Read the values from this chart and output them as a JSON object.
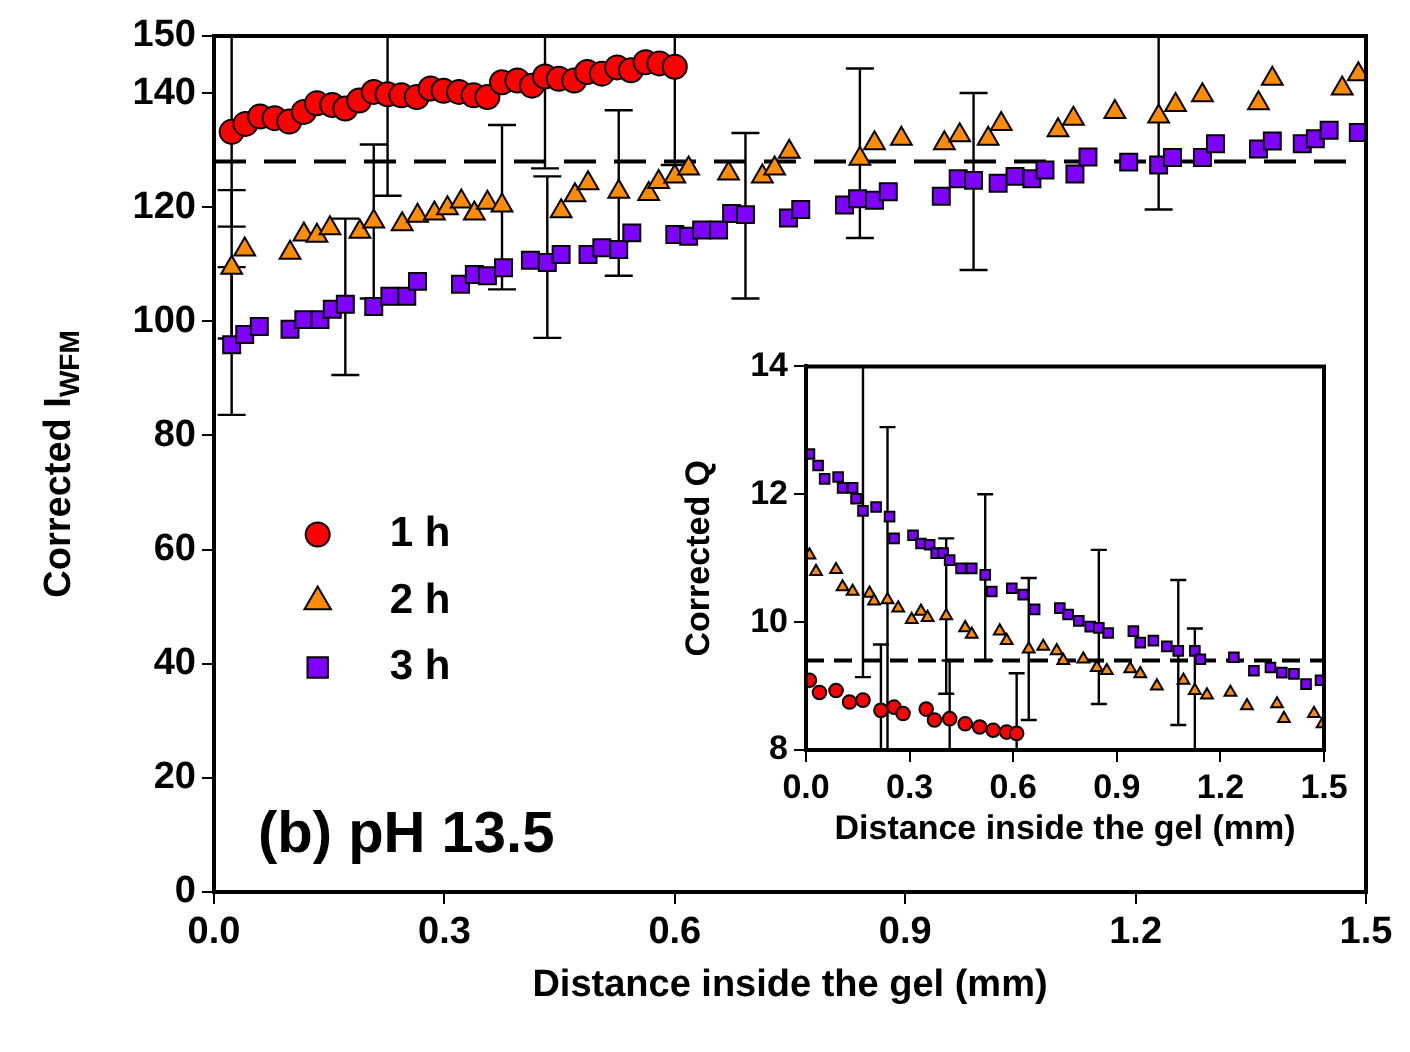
{
  "chart_data": [
    {
      "type": "scatter",
      "ylabel": "Corrected I$_{WFM}$",
      "xlabel": "Distance inside the gel (mm)",
      "annotations": [
        "(b) pH 13.5"
      ],
      "xlim": [
        0,
        1.5
      ],
      "xticks": [
        {
          "value": 0,
          "label": "0.0"
        },
        0.3,
        0.6,
        0.9,
        1.2,
        1.5
      ],
      "ylim": [
        0,
        150
      ],
      "yticks": [
        0,
        20,
        40,
        60,
        80,
        100,
        120,
        140,
        150
      ],
      "legend": "left",
      "ref_lines": [
        {
          "axis": "y",
          "value": 128,
          "label": null,
          "line_style": "dashed"
        }
      ],
      "series": [
        {
          "name": "1 h",
          "color": "#ff0000",
          "marker": "circle",
          "x": [
            0.023,
            0.041,
            0.06,
            0.079,
            0.098,
            0.117,
            0.134,
            0.154,
            0.171,
            0.189,
            0.208,
            0.226,
            0.244,
            0.264,
            0.282,
            0.299,
            0.319,
            0.338,
            0.356,
            0.375,
            0.395,
            0.414,
            0.431,
            0.449,
            0.469,
            0.486,
            0.505,
            0.525,
            0.543,
            0.562,
            0.58,
            0.6
          ],
          "values": [
            133.2,
            134.6,
            135.9,
            135.6,
            135,
            136.7,
            138.2,
            137.9,
            137.3,
            138.7,
            140.2,
            139.8,
            139.6,
            139.3,
            140.8,
            140.4,
            140.2,
            139.6,
            139.3,
            141.9,
            142.2,
            141.3,
            142.9,
            142.5,
            142.2,
            143.7,
            143.4,
            144.5,
            144,
            145.4,
            145.2,
            144.6
          ],
          "errors": [
            [
              116.6,
              150
            ],
            null,
            null,
            null,
            null,
            null,
            null,
            null,
            null,
            null,
            null,
            [
              122,
              150
            ],
            null,
            null,
            null,
            null,
            null,
            null,
            null,
            null,
            null,
            null,
            [
              126.8,
              150
            ],
            null,
            null,
            null,
            null,
            null,
            null,
            null,
            null,
            [
              127.4,
              150
            ]
          ]
        },
        {
          "name": "2 h",
          "color": "#ff8c00",
          "marker": "triangle",
          "x": [
            0.023,
            0.04,
            0.099,
            0.117,
            0.134,
            0.151,
            0.19,
            0.208,
            0.245,
            0.265,
            0.287,
            0.304,
            0.322,
            0.339,
            0.356,
            0.375,
            0.452,
            0.47,
            0.487,
            0.527,
            0.566,
            0.579,
            0.6,
            0.618,
            0.67,
            0.714,
            0.73,
            0.749,
            0.841,
            0.86,
            0.895,
            0.951,
            0.971,
            1.008,
            1.025,
            1.099,
            1.119,
            1.173,
            1.23,
            1.252,
            1.287,
            1.36,
            1.378,
            1.469,
            1.49
          ],
          "values": [
            109.4,
            112.6,
            112,
            115.2,
            115,
            116.3,
            115.7,
            117.5,
            117,
            118.5,
            118.9,
            119.8,
            121,
            118.9,
            120.8,
            120.3,
            119.3,
            122.1,
            124.2,
            122.7,
            122.3,
            124.4,
            125.4,
            126.8,
            125.9,
            125.4,
            126.8,
            129.7,
            128.5,
            131.2,
            132,
            131.2,
            132.6,
            132,
            134.6,
            133.5,
            135.5,
            136.7,
            135.9,
            137.9,
            139.6,
            138.2,
            142.5,
            140.8,
            143.3
          ],
          "errors": [
            [
              97,
              123
            ],
            null,
            null,
            null,
            null,
            null,
            null,
            [
              104,
              131
            ],
            null,
            null,
            null,
            null,
            null,
            null,
            null,
            [
              105.6,
              134.4
            ],
            null,
            null,
            null,
            [
              108,
              137
            ],
            null,
            null,
            null,
            null,
            null,
            null,
            null,
            null,
            [
              114.6,
              144.3
            ],
            null,
            null,
            null,
            null,
            null,
            null,
            null,
            null,
            null,
            [
              119.6,
              150
            ],
            null,
            null,
            null,
            null,
            null,
            null
          ]
        },
        {
          "name": "3 h",
          "color": "#7f00ff",
          "marker": "square",
          "x": [
            0.023,
            0.04,
            0.059,
            0.099,
            0.117,
            0.138,
            0.154,
            0.171,
            0.208,
            0.229,
            0.251,
            0.265,
            0.321,
            0.339,
            0.356,
            0.377,
            0.412,
            0.434,
            0.452,
            0.487,
            0.505,
            0.527,
            0.544,
            0.6,
            0.618,
            0.635,
            0.657,
            0.674,
            0.692,
            0.748,
            0.764,
            0.821,
            0.838,
            0.86,
            0.878,
            0.947,
            0.969,
            0.989,
            1.021,
            1.043,
            1.065,
            1.082,
            1.121,
            1.138,
            1.191,
            1.23,
            1.248,
            1.287,
            1.304,
            1.36,
            1.378,
            1.417,
            1.434,
            1.452,
            1.49
          ],
          "values": [
            95.9,
            97.7,
            99.1,
            98.6,
            100.3,
            100.3,
            102.1,
            103,
            102.6,
            104.4,
            104.4,
            107,
            106.5,
            108.2,
            108,
            109.4,
            110.7,
            110.3,
            111.7,
            111.7,
            112.9,
            112.6,
            115.5,
            115.2,
            114.9,
            116,
            116,
            118.9,
            118.7,
            118.1,
            119.6,
            120.4,
            121.5,
            121.2,
            122.7,
            121.9,
            125,
            124.7,
            124.2,
            125.4,
            125,
            126.5,
            125.8,
            128.8,
            127.9,
            127.4,
            128.7,
            128.7,
            131.1,
            130.2,
            131.6,
            131.1,
            132,
            133.5,
            133.1
          ],
          "errors": [
            [
              83.6,
              109.5
            ],
            null,
            null,
            null,
            null,
            null,
            null,
            [
              90.6,
              118
            ],
            null,
            null,
            null,
            null,
            null,
            null,
            null,
            null,
            null,
            [
              97.1,
              125.4
            ],
            null,
            null,
            null,
            null,
            null,
            null,
            null,
            null,
            null,
            null,
            [
              104,
              133
            ],
            null,
            null,
            null,
            null,
            null,
            null,
            null,
            null,
            [
              109,
              140
            ],
            null,
            null,
            null,
            null,
            null,
            null,
            null,
            null,
            null,
            null,
            null,
            null,
            null,
            null,
            null,
            null,
            null
          ]
        }
      ]
    },
    {
      "type": "scatter",
      "ylabel": "Corrected Q",
      "xlabel": "Distance inside the gel (mm)",
      "xlim": [
        0,
        1.5
      ],
      "xticks": [
        {
          "value": 0,
          "label": "0.0"
        },
        0.3,
        0.6,
        0.9,
        1.2,
        1.5
      ],
      "ylim": [
        8,
        14
      ],
      "yticks": [
        8,
        10,
        12,
        14
      ],
      "ref_lines": [
        {
          "axis": "y",
          "value": 9.4,
          "label": null,
          "line_style": "dashed"
        }
      ],
      "series": [
        {
          "color": "#ff0000",
          "marker": "circle",
          "x": [
            0.01,
            0.039,
            0.087,
            0.126,
            0.165,
            0.217,
            0.255,
            0.281,
            0.348,
            0.372,
            0.416,
            0.461,
            0.503,
            0.542,
            0.581,
            0.61
          ],
          "values": [
            9.09,
            8.9,
            8.93,
            8.75,
            8.78,
            8.62,
            8.67,
            8.57,
            8.64,
            8.47,
            8.49,
            8.41,
            8.36,
            8.31,
            8.28,
            8.26
          ],
          "errors": [
            null,
            null,
            null,
            null,
            null,
            [
              8,
              9.65
            ],
            null,
            null,
            null,
            null,
            [
              8,
              9.4
            ],
            null,
            null,
            null,
            null,
            [
              8,
              9.2
            ]
          ]
        },
        {
          "color": "#ff8c00",
          "marker": "triangle",
          "x": [
            0.01,
            0.029,
            0.087,
            0.106,
            0.135,
            0.184,
            0.197,
            0.236,
            0.267,
            0.306,
            0.333,
            0.352,
            0.406,
            0.461,
            0.48,
            0.561,
            0.581,
            0.645,
            0.687,
            0.726,
            0.745,
            0.803,
            0.842,
            0.871,
            0.939,
            0.968,
            1.016,
            1.093,
            1.126,
            1.161,
            1.229,
            1.277,
            1.364,
            1.384,
            1.471,
            1.496
          ],
          "values": [
            11.05,
            10.79,
            10.82,
            10.55,
            10.48,
            10.45,
            10.33,
            10.35,
            10.22,
            10.04,
            10.17,
            10.07,
            10.1,
            9.91,
            9.81,
            9.86,
            9.71,
            9.58,
            9.62,
            9.55,
            9.4,
            9.42,
            9.29,
            9.24,
            9.27,
            9.19,
            9,
            9.09,
            8.93,
            8.86,
            8.9,
            8.69,
            8.72,
            8.49,
            8.57,
            8.41
          ],
          "errors": [
            null,
            null,
            null,
            null,
            null,
            null,
            null,
            [
              8,
              13.05
            ],
            null,
            null,
            null,
            null,
            [
              8.88,
              11.31
            ],
            null,
            null,
            null,
            null,
            [
              8.47,
              10.69
            ],
            null,
            null,
            null,
            null,
            null,
            null,
            null,
            null,
            null,
            null,
            [
              8,
              9.9
            ],
            null,
            null,
            null,
            null,
            null,
            null,
            null
          ]
        },
        {
          "color": "#7f00ff",
          "marker": "square",
          "x": [
            0.01,
            0.035,
            0.054,
            0.093,
            0.106,
            0.135,
            0.145,
            0.165,
            0.203,
            0.242,
            0.255,
            0.31,
            0.333,
            0.358,
            0.377,
            0.397,
            0.416,
            0.449,
            0.48,
            0.519,
            0.538,
            0.596,
            0.629,
            0.662,
            0.735,
            0.759,
            0.79,
            0.823,
            0.848,
            0.875,
            0.948,
            0.968,
            1.006,
            1.045,
            1.078,
            1.126,
            1.142,
            1.239,
            1.297,
            1.345,
            1.378,
            1.413,
            1.448,
            1.49
          ],
          "values": [
            12.63,
            12.45,
            12.24,
            12.27,
            12.1,
            12.1,
            11.93,
            11.74,
            11.8,
            11.65,
            11.31,
            11.36,
            11.23,
            11.21,
            11.08,
            11.08,
            10.97,
            10.84,
            10.84,
            10.74,
            10.48,
            10.53,
            10.43,
            10.2,
            10.22,
            10.12,
            10.02,
            9.93,
            9.91,
            9.83,
            9.86,
            9.68,
            9.71,
            9.62,
            9.55,
            9.55,
            9.42,
            9.45,
            9.24,
            9.29,
            9.21,
            9.19,
            9.03,
            9.09
          ],
          "errors": [
            null,
            null,
            null,
            null,
            null,
            null,
            null,
            [
              9.14,
              14
            ],
            null,
            null,
            null,
            null,
            null,
            null,
            null,
            null,
            null,
            null,
            null,
            [
              9.4,
              12
            ],
            null,
            null,
            null,
            null,
            null,
            null,
            null,
            null,
            [
              8.72,
              11.13
            ],
            null,
            null,
            null,
            null,
            null,
            [
              8.39,
              10.66
            ],
            null,
            null,
            null,
            null,
            null,
            null,
            null,
            null,
            null
          ]
        }
      ]
    }
  ]
}
